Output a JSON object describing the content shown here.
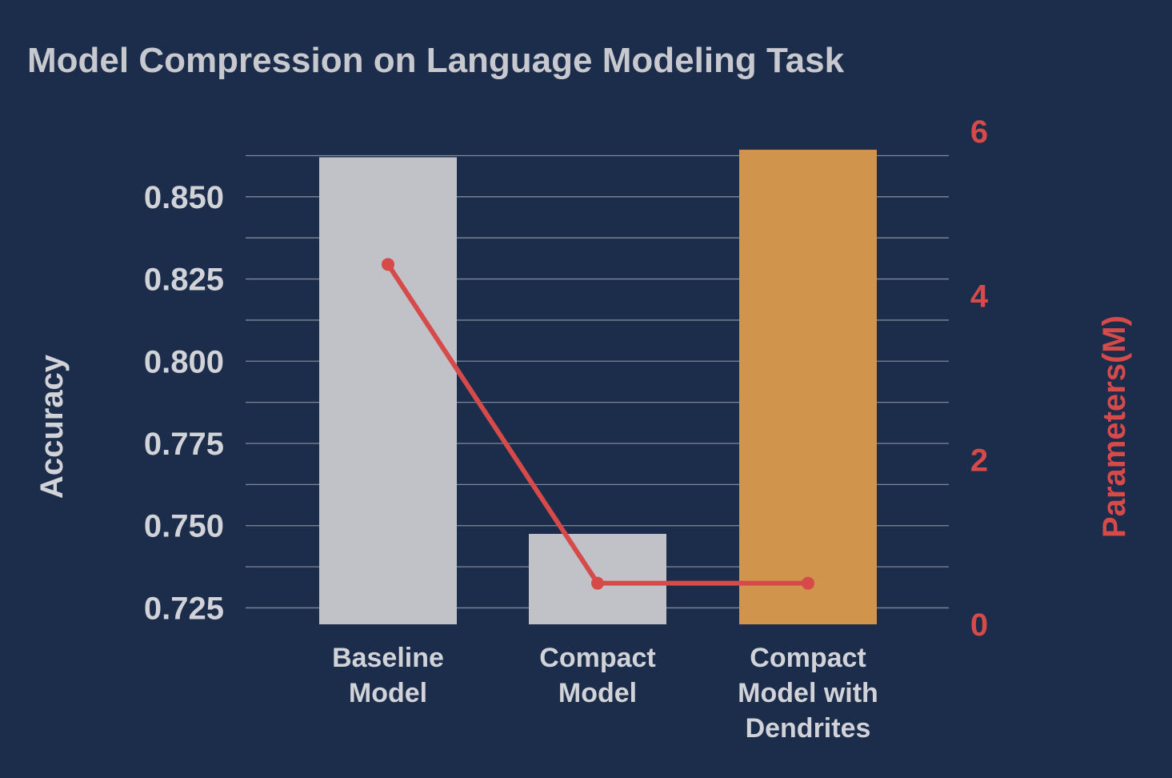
{
  "chart_data": {
    "type": "bar",
    "title": "Model Compression on Language Modeling Task",
    "categories": [
      [
        "Baseline",
        "Model"
      ],
      [
        "Compact",
        "Model"
      ],
      [
        "Compact",
        "Model with",
        "Dendrites"
      ]
    ],
    "ylabel": "Accuracy",
    "y2label": "Parameters(M)",
    "ylim": [
      0.72,
      0.8635
    ],
    "y2lim": [
      0,
      6
    ],
    "yticks": [
      "0.725",
      "0.750",
      "0.775",
      "0.800",
      "0.825",
      "0.850"
    ],
    "y2ticks": [
      "0",
      "2",
      "4",
      "6"
    ],
    "grid": true,
    "series": [
      {
        "type": "bar",
        "axis": "left",
        "values": [
          0.862,
          0.7475,
          0.8643
        ],
        "colors": [
          "#c1c2c8",
          "#c1c2c8",
          "#d0944c"
        ]
      },
      {
        "type": "line",
        "axis": "right",
        "values": [
          4.38,
          0.5,
          0.5
        ],
        "color": "#d64a4a"
      }
    ],
    "colors": {
      "background": "#1b2d4a",
      "text": "#d2d3d8",
      "right_axis": "#d64a4a"
    }
  }
}
